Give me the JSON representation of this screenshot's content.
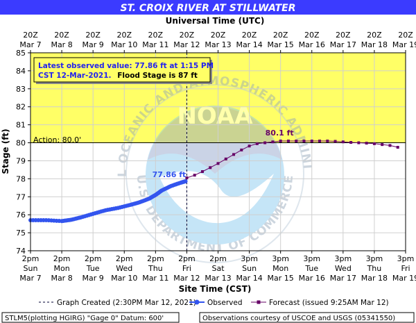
{
  "chart_data": {
    "type": "line",
    "title": "ST. CROIX RIVER AT STILLWATER",
    "top_axis_label": "Universal Time (UTC)",
    "xlabel": "Site Time (CST)",
    "ylabel": "Stage (ft)",
    "ylim": [
      74,
      85
    ],
    "yticks": [
      74,
      75,
      76,
      77,
      78,
      79,
      80,
      81,
      82,
      83,
      84,
      85
    ],
    "xlim_days": [
      "Mar 7 2pm",
      "Mar 19 2pm"
    ],
    "x_ticks_bottom": [
      {
        "time": "2pm",
        "day": "Sun",
        "date": "Mar 7"
      },
      {
        "time": "2pm",
        "day": "Mon",
        "date": "Mar 8"
      },
      {
        "time": "2pm",
        "day": "Tue",
        "date": "Mar 9"
      },
      {
        "time": "2pm",
        "day": "Wed",
        "date": "Mar 10"
      },
      {
        "time": "2pm",
        "day": "Thu",
        "date": "Mar 11"
      },
      {
        "time": "2pm",
        "day": "Fri",
        "date": "Mar 12"
      },
      {
        "time": "2pm",
        "day": "Sat",
        "date": "Mar 13"
      },
      {
        "time": "3pm",
        "day": "Sun",
        "date": "Mar 14"
      },
      {
        "time": "3pm",
        "day": "Mon",
        "date": "Mar 15"
      },
      {
        "time": "3pm",
        "day": "Tue",
        "date": "Mar 16"
      },
      {
        "time": "3pm",
        "day": "Wed",
        "date": "Mar 17"
      },
      {
        "time": "3pm",
        "day": "Thu",
        "date": "Mar 18"
      },
      {
        "time": "3pm",
        "day": "Fri",
        "date": "Mar 19"
      }
    ],
    "x_ticks_top": [
      {
        "time": "20Z",
        "date": "Mar 7"
      },
      {
        "time": "20Z",
        "date": "Mar 8"
      },
      {
        "time": "20Z",
        "date": "Mar 9"
      },
      {
        "time": "20Z",
        "date": "Mar 10"
      },
      {
        "time": "20Z",
        "date": "Mar 11"
      },
      {
        "time": "20Z",
        "date": "Mar 12"
      },
      {
        "time": "20Z",
        "date": "Mar 13"
      },
      {
        "time": "20Z",
        "date": "Mar 14"
      },
      {
        "time": "20Z",
        "date": "Mar 15"
      },
      {
        "time": "20Z",
        "date": "Mar 16"
      },
      {
        "time": "20Z",
        "date": "Mar 17"
      },
      {
        "time": "20Z",
        "date": "Mar 18"
      },
      {
        "time": "20Z",
        "date": "Mar 19"
      }
    ],
    "flood_stage": 87,
    "action_stage": 80.0,
    "action_label": "Action:  80.0'",
    "zone_colors": {
      "flood": "#ffff66",
      "action": "#ffff66",
      "normal": "#ffffff"
    },
    "info_box": {
      "line1": "Latest observed value: 77.86 ft at 1:15 PM",
      "line2_prefix": "CST 12-Mar-2021.",
      "line2_suffix": "Flood Stage is 87 ft"
    },
    "observed_label": "77.86 ft",
    "forecast_peak_label": "80.1 ft",
    "graph_created_day": 5.0,
    "series": [
      {
        "name": "Observed",
        "color": "#3355ee",
        "x_days": [
          0,
          0.5,
          1.0,
          1.3,
          1.6,
          2.0,
          2.4,
          2.8,
          3.2,
          3.5,
          3.8,
          4.0,
          4.2,
          4.5,
          4.8,
          4.96
        ],
        "values": [
          75.7,
          75.7,
          75.65,
          75.72,
          75.85,
          76.05,
          76.25,
          76.38,
          76.55,
          76.7,
          76.9,
          77.1,
          77.35,
          77.6,
          77.78,
          77.86
        ]
      },
      {
        "name": "Forecast",
        "color": "#660066",
        "x_days": [
          5.0,
          5.25,
          5.5,
          5.75,
          6.0,
          6.25,
          6.5,
          6.75,
          7.0,
          7.25,
          7.5,
          7.75,
          8.0,
          8.25,
          8.5,
          8.75,
          9.0,
          9.25,
          9.5,
          9.75,
          10.0,
          10.25,
          10.5,
          10.75,
          11.0,
          11.25,
          11.5,
          11.75
        ],
        "values": [
          78.05,
          78.2,
          78.4,
          78.62,
          78.85,
          79.1,
          79.35,
          79.6,
          79.82,
          79.95,
          80.0,
          80.05,
          80.1,
          80.1,
          80.1,
          80.1,
          80.1,
          80.1,
          80.1,
          80.08,
          80.05,
          80.02,
          80.0,
          79.98,
          79.95,
          79.9,
          79.85,
          79.75
        ]
      }
    ]
  },
  "legend": {
    "graph_created": "Graph Created (2:30PM Mar 12, 2021)",
    "observed": "Observed",
    "forecast": "Forecast (issued 9:25AM Mar 12)"
  },
  "footer": {
    "left": "STLM5(plotting HGIRG) \"Gage 0\" Datum:  600'",
    "right": "Observations courtesy of USCOE and USGS (05341550)"
  },
  "watermark": {
    "logo_text": "NOAA",
    "ring_text": "NATIONAL OCEANIC AND ATMOSPHERIC ADMINISTRATION",
    "bottom_text": "U.S. DEPARTMENT OF COMMERCE"
  }
}
